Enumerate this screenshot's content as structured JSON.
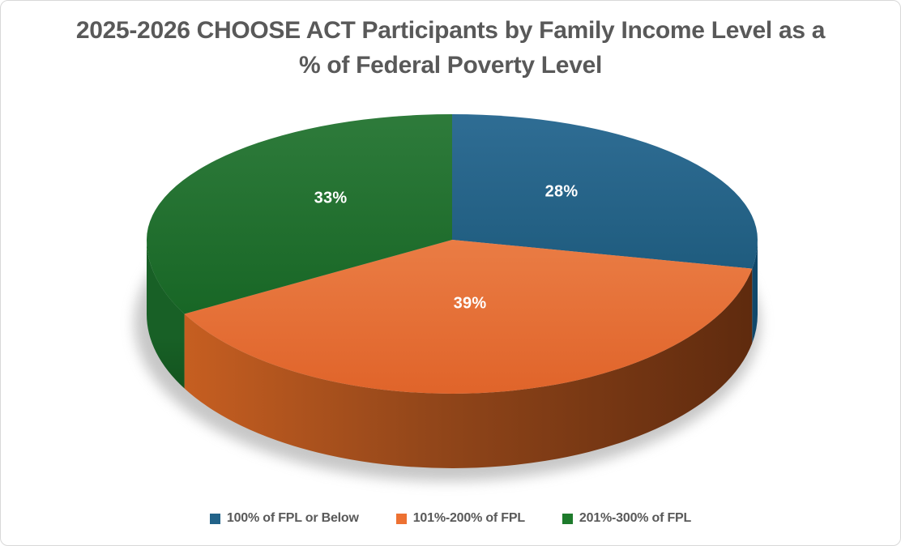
{
  "chart_data": {
    "type": "pie",
    "style": "3d",
    "title": "2025-2026 CHOOSE ACT Participants by Family Income Level as a % of Federal Poverty Level",
    "title_color": "#595959",
    "legend_position": "bottom",
    "legend_text_color": "#595959",
    "data_label_color": "#FFFFFF",
    "background": "#FFFFFF",
    "border_color": "#D8D8D8",
    "start_angle_deg": 0,
    "direction": "clockwise",
    "slices": [
      {
        "label": "100% of FPL or Below",
        "value": 28,
        "data_label": "28%",
        "color": "#226389",
        "top_gradient": [
          "#2F6D94",
          "#124E6D"
        ],
        "side_gradient": [
          "#10486B",
          "#0B3450"
        ]
      },
      {
        "label": "101%-200% of FPL",
        "value": 39,
        "data_label": "39%",
        "color": "#ED7132",
        "top_gradient": [
          "#F2905A",
          "#E0642A"
        ],
        "side_gradient": [
          "#CE6222",
          "#94471A",
          "#5E2A0E"
        ]
      },
      {
        "label": "201%-300% of FPL",
        "value": 33,
        "data_label": "33%",
        "color": "#1E7B2C",
        "top_gradient": [
          "#2E7B3B",
          "#0F5E1D"
        ],
        "side_gradient": [
          "#186026",
          "#0B4113"
        ]
      }
    ]
  }
}
